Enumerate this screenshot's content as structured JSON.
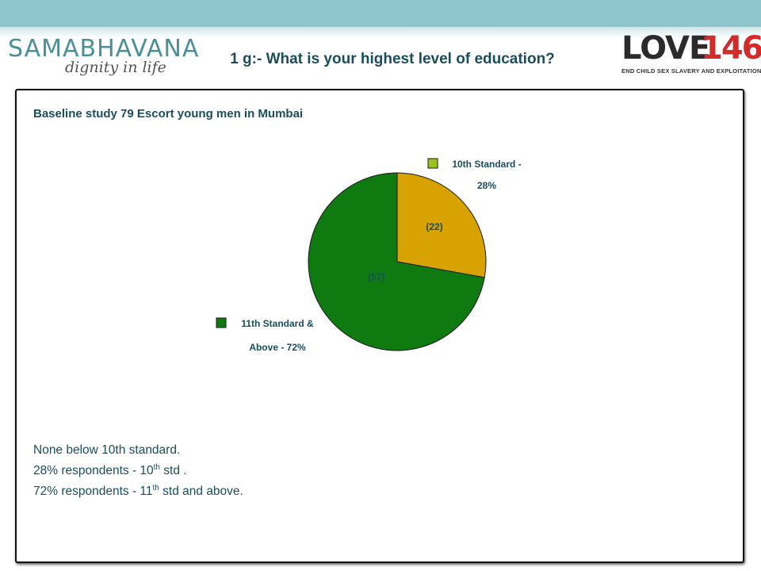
{
  "header": {
    "left_logo": {
      "brand": "SAMABHAVANA",
      "tagline": "dignity in life"
    },
    "title": "1 g:- What is your highest level of education?",
    "right_logo": {
      "word": "LOVE",
      "number": "146",
      "tagline": "END CHILD SEX SLAVERY AND EXPLOITATION"
    }
  },
  "subtitle": "Baseline study 79 Escort young men in Mumbai",
  "notes": {
    "line1": "None below 10th standard.",
    "line2_prefix": "28% respondents  - 10",
    "line2_sup": "th",
    "line2_suffix": " std .",
    "line3_prefix": "72% respondents  - 11",
    "line3_sup": "th",
    "line3_suffix": " std and above."
  },
  "chart_data": {
    "type": "pie",
    "slices": [
      {
        "label_line1": "10th Standard -",
        "label_line2": "28%",
        "value": 22,
        "data_label": "(22)",
        "color": "#d8a200"
      },
      {
        "label_line1": "11th Standard &",
        "label_line2": "Above - 72%",
        "value": 57,
        "data_label": "(57)",
        "color": "#0f7a10"
      }
    ],
    "legend_swatch_colors": [
      "#9ac31c",
      "#0f7a10"
    ]
  }
}
